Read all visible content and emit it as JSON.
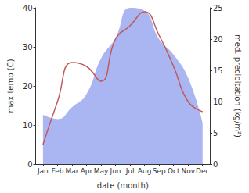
{
  "chart_data": {
    "type": "line",
    "x_label": "date (month)",
    "categories": [
      "Jan",
      "Feb",
      "Mar",
      "Apr",
      "May",
      "Jun",
      "Jul",
      "Aug",
      "Sep",
      "Oct",
      "Nov",
      "Dec"
    ],
    "ylim": [
      0,
      40
    ],
    "yticks": [
      0,
      10,
      20,
      30,
      40
    ],
    "y_label": "max temp (C)",
    "y2lim": [
      0,
      25
    ],
    "y2ticks": [
      0,
      5,
      10,
      15,
      20,
      25
    ],
    "y2_label": "med. precipitation (kg/m²)",
    "grid": false,
    "series": [
      {
        "name": "med. precipitation",
        "type": "area",
        "axis": "y2",
        "color": "#aab6f1",
        "values": [
          7.9,
          7.2,
          9.1,
          11.2,
          16.9,
          20.2,
          25.0,
          24.5,
          20.0,
          17.5,
          13.8,
          6.6
        ]
      },
      {
        "name": "max temp",
        "type": "line",
        "axis": "y",
        "color": "#c05a5a",
        "values": [
          5,
          16,
          26,
          25,
          21.2,
          32,
          35.4,
          39,
          33,
          25,
          16,
          13.4
        ]
      }
    ]
  }
}
